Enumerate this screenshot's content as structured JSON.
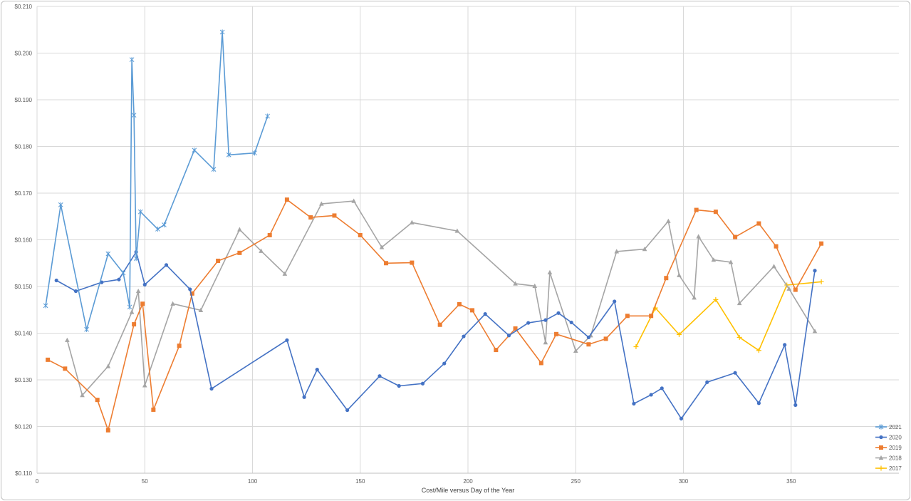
{
  "chart_data": {
    "type": "line",
    "title": "",
    "xlabel": "Cost/Mile versus Day of the Year",
    "ylabel": "",
    "xlim": [
      0,
      400
    ],
    "ylim": [
      0.11,
      0.21
    ],
    "x_ticks": [
      0,
      50,
      100,
      150,
      200,
      250,
      300,
      350
    ],
    "y_ticks": [
      {
        "value": 0.11,
        "label": "$0.110"
      },
      {
        "value": 0.12,
        "label": "$0.120"
      },
      {
        "value": 0.13,
        "label": "$0.130"
      },
      {
        "value": 0.14,
        "label": "$0.140"
      },
      {
        "value": 0.15,
        "label": "$0.150"
      },
      {
        "value": 0.16,
        "label": "$0.160"
      },
      {
        "value": 0.17,
        "label": "$0.170"
      },
      {
        "value": 0.18,
        "label": "$0.180"
      },
      {
        "value": 0.19,
        "label": "$0.190"
      },
      {
        "value": 0.2,
        "label": "$0.200"
      },
      {
        "value": 0.21,
        "label": "$0.210"
      }
    ],
    "grid": true,
    "legend_position": "bottom-right",
    "series": [
      {
        "name": "2021",
        "color": "#5b9bd5",
        "marker": "star",
        "x": [
          4,
          11,
          23,
          33,
          40,
          43,
          44,
          45,
          46,
          48,
          56,
          59,
          73,
          82,
          86,
          89,
          101,
          107
        ],
        "y": [
          0.1459,
          0.1675,
          0.1408,
          0.157,
          0.1529,
          0.1456,
          0.1986,
          0.1867,
          0.156,
          0.166,
          0.1623,
          0.1632,
          0.1792,
          0.1751,
          0.2045,
          0.1782,
          0.1786,
          0.1865
        ]
      },
      {
        "name": "2020",
        "color": "#4472c4",
        "marker": "circle",
        "x": [
          9,
          18,
          30,
          38,
          46,
          50,
          60,
          71,
          81,
          116,
          124,
          130,
          144,
          159,
          168,
          179,
          189,
          198,
          208,
          219,
          228,
          236,
          242,
          248,
          256,
          268,
          277,
          285,
          290,
          299,
          311,
          324,
          335,
          347,
          352,
          361
        ],
        "y": [
          0.1513,
          0.149,
          0.1509,
          0.1515,
          0.1574,
          0.1504,
          0.1546,
          0.1494,
          0.1281,
          0.1385,
          0.1263,
          0.1322,
          0.1235,
          0.1308,
          0.1287,
          0.1292,
          0.1335,
          0.1393,
          0.1441,
          0.1395,
          0.1422,
          0.1428,
          0.1443,
          0.1423,
          0.1391,
          0.1468,
          0.1249,
          0.1268,
          0.1282,
          0.1217,
          0.1295,
          0.1315,
          0.125,
          0.1375,
          0.1246,
          0.1534
        ]
      },
      {
        "name": "2019",
        "color": "#ed7d31",
        "marker": "square",
        "x": [
          5,
          13,
          28,
          33,
          45,
          49,
          54,
          66,
          72,
          84,
          94,
          108,
          116,
          127,
          138,
          150,
          162,
          174,
          187,
          196,
          202,
          213,
          222,
          234,
          241,
          256,
          264,
          274,
          285,
          292,
          306,
          315,
          324,
          335,
          343,
          352,
          364
        ],
        "y": [
          0.1343,
          0.1324,
          0.1257,
          0.1192,
          0.1419,
          0.1463,
          0.1236,
          0.1373,
          0.1485,
          0.1555,
          0.1572,
          0.161,
          0.1686,
          0.1648,
          0.1652,
          0.161,
          0.155,
          0.1551,
          0.1418,
          0.1462,
          0.1449,
          0.1364,
          0.141,
          0.1336,
          0.1398,
          0.1376,
          0.1388,
          0.1437,
          0.1437,
          0.1518,
          0.1664,
          0.166,
          0.1606,
          0.1635,
          0.1586,
          0.1493,
          0.1592
        ]
      },
      {
        "name": "2018",
        "color": "#a5a5a5",
        "marker": "triangle",
        "x": [
          14,
          21,
          33,
          44,
          47,
          50,
          63,
          76,
          94,
          104,
          115,
          132,
          147,
          160,
          174,
          195,
          222,
          231,
          236,
          238,
          250,
          257,
          269,
          282,
          293,
          298,
          305,
          307,
          314,
          322,
          326,
          342,
          349,
          361
        ],
        "y": [
          0.1385,
          0.1267,
          0.1329,
          0.1445,
          0.149,
          0.1288,
          0.1463,
          0.1449,
          0.1622,
          0.1576,
          0.1527,
          0.1677,
          0.1683,
          0.1584,
          0.1637,
          0.1619,
          0.1506,
          0.1501,
          0.138,
          0.153,
          0.1362,
          0.1395,
          0.1575,
          0.158,
          0.164,
          0.1524,
          0.1476,
          0.1607,
          0.1557,
          0.1552,
          0.1464,
          0.1543,
          0.1495,
          0.1404
        ]
      },
      {
        "name": "2017",
        "color": "#ffc000",
        "marker": "plus",
        "x": [
          278,
          287,
          298,
          315,
          326,
          335,
          348,
          364
        ],
        "y": [
          0.1371,
          0.1454,
          0.1397,
          0.1472,
          0.1391,
          0.1363,
          0.1503,
          0.151
        ]
      }
    ]
  }
}
